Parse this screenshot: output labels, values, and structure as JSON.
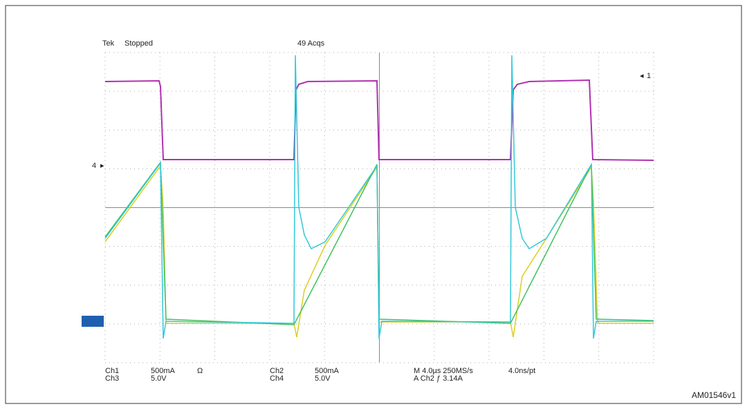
{
  "screen": {
    "brand": "Tek",
    "status": "Stopped",
    "acquisitions": "49 Acqs"
  },
  "readout": {
    "rows": [
      [
        "Ch1",
        "500mA",
        "Ω",
        "Ch2",
        "500mA",
        "M 4.0µs 250MS/s",
        "4.0ns/pt"
      ],
      [
        "Ch3",
        "5.0V",
        "",
        "Ch4",
        "5.0V",
        "A Ch2 ƒ 3.14A",
        ""
      ]
    ]
  },
  "markers": {
    "left": "4",
    "right": "1"
  },
  "figure_id": "AM01546v1"
}
